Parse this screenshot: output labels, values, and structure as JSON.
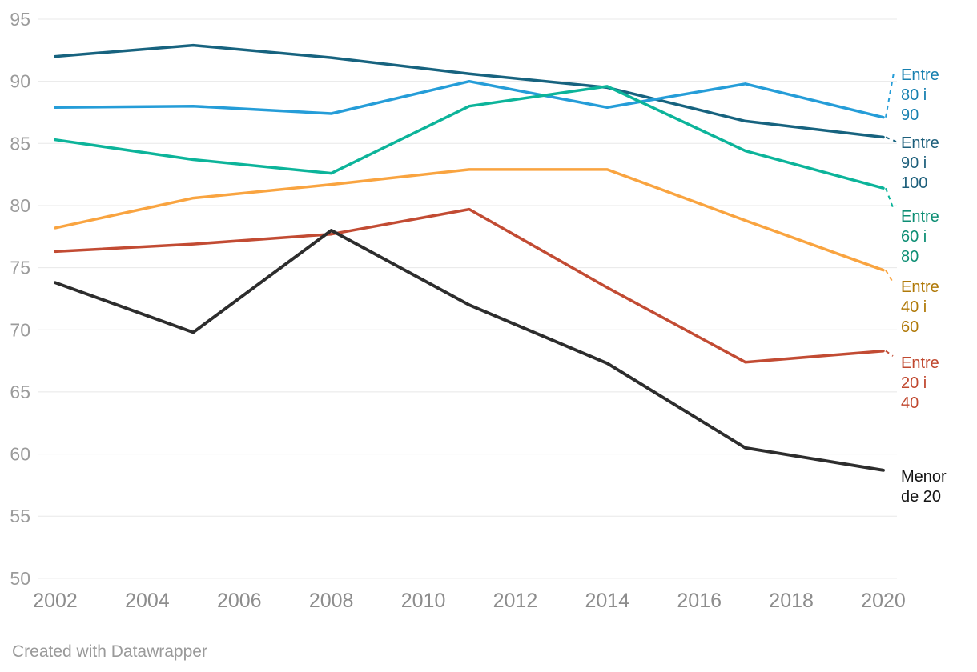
{
  "chart_data": {
    "type": "line",
    "title": "",
    "xlabel": "",
    "ylabel": "",
    "x": [
      2002,
      2005,
      2008,
      2011,
      2014,
      2017,
      2020
    ],
    "series": [
      {
        "name": "Entre 80 i 90",
        "label_lines": [
          "Entre",
          "80 i",
          "90"
        ],
        "color": "#259dd8",
        "label_color": "#1780b0",
        "values": [
          87.9,
          88.0,
          87.4,
          90.0,
          87.9,
          89.8,
          87.1
        ]
      },
      {
        "name": "Entre 90 i 100",
        "label_lines": [
          "Entre",
          "90 i",
          "100"
        ],
        "color": "#17637f",
        "label_color": "#1d5f7b",
        "values": [
          92.0,
          92.9,
          91.9,
          90.6,
          89.5,
          86.8,
          85.5
        ]
      },
      {
        "name": "Entre 60 i 80",
        "label_lines": [
          "Entre",
          "60 i",
          "80"
        ],
        "color": "#0cb49a",
        "label_color": "#0d8e74",
        "values": [
          85.3,
          83.7,
          82.6,
          88.0,
          89.6,
          84.4,
          81.4
        ]
      },
      {
        "name": "Entre 40 i 60",
        "label_lines": [
          "Entre",
          "40 i",
          "60"
        ],
        "color": "#f9a440",
        "label_color": "#b07a0a",
        "values": [
          78.2,
          80.6,
          81.7,
          82.9,
          82.9,
          78.8,
          74.8
        ]
      },
      {
        "name": "Entre 20 i 40",
        "label_lines": [
          "Entre",
          "20 i",
          "40"
        ],
        "color": "#c24b33",
        "label_color": "#c0482f",
        "values": [
          76.3,
          76.9,
          77.7,
          79.7,
          73.4,
          67.4,
          68.3
        ]
      },
      {
        "name": "Menor de 20",
        "label_lines": [
          "Menor",
          "de 20"
        ],
        "color": "#2d2d2d",
        "label_color": "#141414",
        "values": [
          73.8,
          69.8,
          78.0,
          72.0,
          67.3,
          60.5,
          58.7
        ]
      }
    ],
    "x_ticks": [
      2002,
      2004,
      2006,
      2008,
      2010,
      2012,
      2014,
      2016,
      2018,
      2020
    ],
    "y_ticks": [
      95,
      90,
      85,
      80,
      75,
      70,
      65,
      60,
      55,
      50
    ],
    "xlim": [
      2002,
      2020
    ],
    "ylim": [
      50,
      95
    ],
    "grid": true,
    "legend_position": "right-of-lines"
  },
  "colors": {
    "background": "#ffffff",
    "grid": "#e8e8e8",
    "y_tick_text": "#9b9b9b",
    "x_tick_text": "#8d8d8d",
    "footer_text": "#9a9a9a"
  },
  "footer": {
    "attribution": "Created with Datawrapper"
  }
}
